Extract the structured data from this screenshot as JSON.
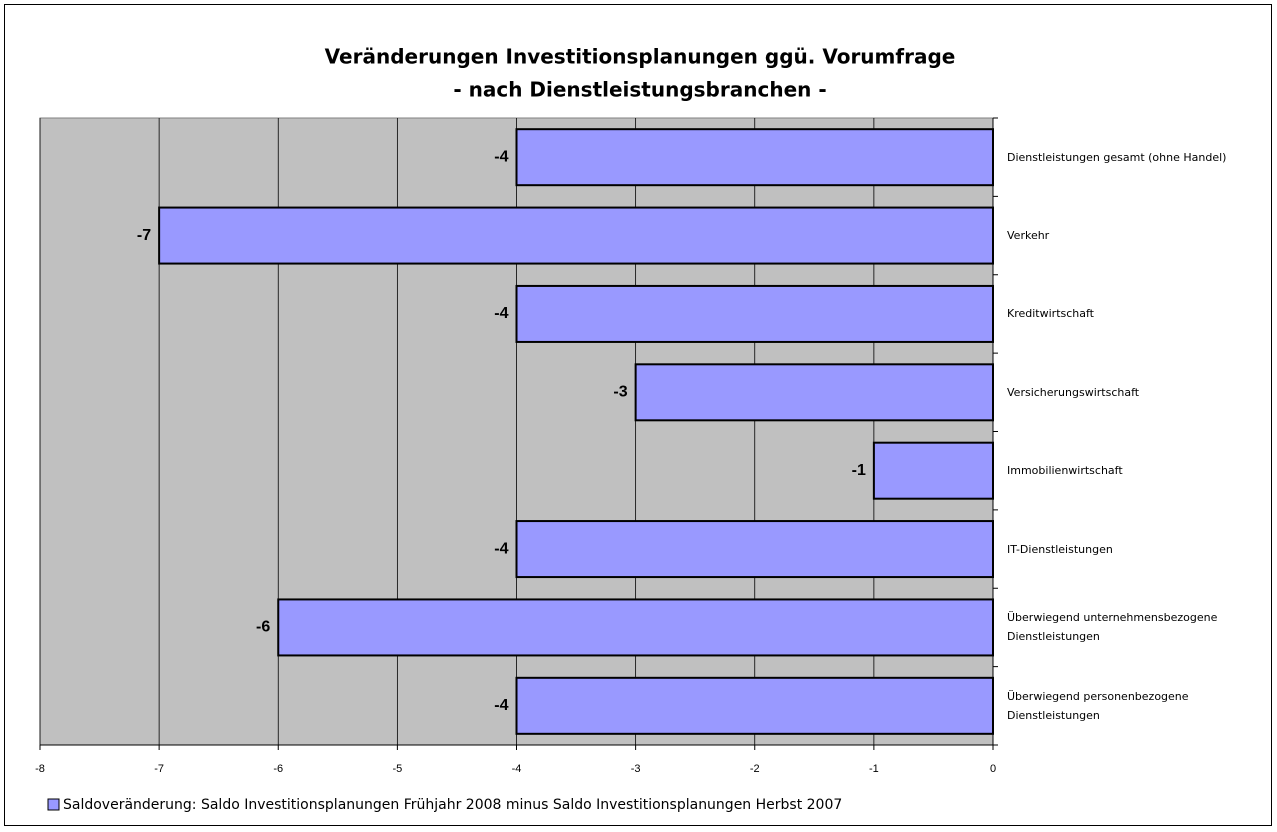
{
  "chart_data": {
    "type": "bar",
    "orientation": "horizontal",
    "title": "Veränderungen Investitionsplanungen ggü. Vorumfrage",
    "subtitle": "- nach Dienstleistungsbranchen -",
    "categories": [
      "Dienstleistungen gesamt (ohne Handel)",
      "Verkehr",
      "Kreditwirtschaft",
      "Versicherungswirtschaft",
      "Immobilienwirtschaft",
      "IT-Dienstleistungen",
      "Überwiegend unternehmensbezogene Dienstleistungen",
      "Überwiegend personenbezogene Dienstleistungen"
    ],
    "series": [
      {
        "name": "Saldoveränderung: Saldo Investitionsplanungen Frühjahr 2008 minus Saldo Investitionsplanungen Herbst 2007",
        "color": "#9999ff",
        "values": [
          -4,
          -7,
          -4,
          -3,
          -1,
          -4,
          -6,
          -4
        ]
      }
    ],
    "xlim": [
      -8,
      0
    ],
    "xticks": [
      -8,
      -7,
      -6,
      -5,
      -4,
      -3,
      -2,
      -1,
      0
    ],
    "grid": true,
    "legend": "bottom-left"
  }
}
